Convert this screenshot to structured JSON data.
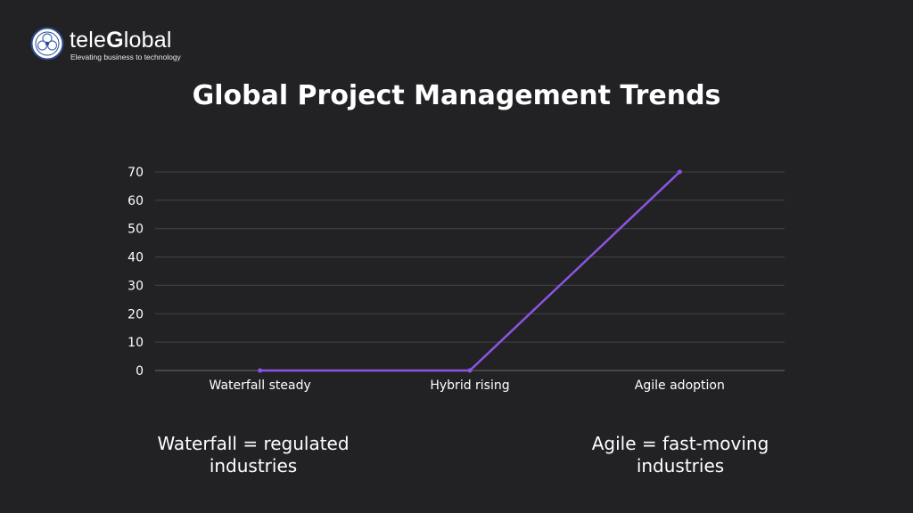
{
  "logo": {
    "name_prefix": "tele",
    "name_bold": "G",
    "name_suffix": "lobal",
    "tagline": "Elevating business to technology"
  },
  "slide": {
    "title": "Global Project Management Trends"
  },
  "notes": {
    "left": "Waterfall = regulated industries",
    "right": "Agile = fast-moving industries"
  },
  "colors": {
    "background": "#222225",
    "line": "#8C55E2",
    "gridline": "#444448",
    "text": "#FFFFFF"
  },
  "chart_data": {
    "type": "line",
    "title": "",
    "xlabel": "",
    "ylabel": "",
    "categories": [
      "Waterfall steady",
      "Hybrid rising",
      "Agile adoption"
    ],
    "series": [
      {
        "values": [
          0,
          0,
          70
        ]
      }
    ],
    "ylim": [
      0,
      70
    ],
    "yticks": [
      0,
      10,
      20,
      30,
      40,
      50,
      60,
      70
    ],
    "grid": true,
    "legend": "none"
  }
}
